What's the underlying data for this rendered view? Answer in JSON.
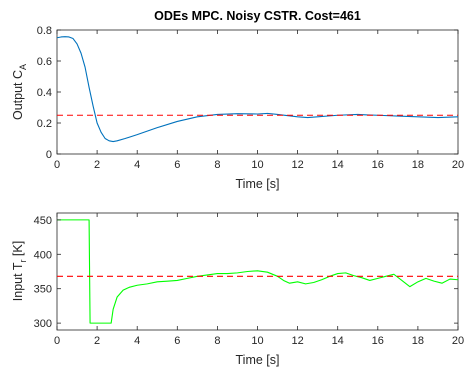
{
  "chart_data": [
    {
      "type": "line",
      "title": "ODEs MPC. Noisy CSTR. Cost=461",
      "xlabel": "Time [s]",
      "ylabel_main": "Output C",
      "ylabel_sub": "A",
      "xlim": [
        0,
        20
      ],
      "ylim": [
        0,
        0.8
      ],
      "xticks": [
        "0",
        "2",
        "4",
        "6",
        "8",
        "10",
        "12",
        "14",
        "16",
        "18",
        "20"
      ],
      "yticks": [
        "0",
        "0.2",
        "0.4",
        "0.6",
        "0.8"
      ],
      "grid": false,
      "series": [
        {
          "color": "#0072BD",
          "x": [
            0,
            0.2,
            0.4,
            0.6,
            0.8,
            1.0,
            1.2,
            1.4,
            1.6,
            1.8,
            2.0,
            2.2,
            2.4,
            2.6,
            2.8,
            3.0,
            3.4,
            4.0,
            5.0,
            6.0,
            7.0,
            8.0,
            9.0,
            10.0,
            10.5,
            11.0,
            12.0,
            12.5,
            13.0,
            14.0,
            15.0,
            15.5,
            16.0,
            17.0,
            18.0,
            19.0,
            20.0
          ],
          "y": [
            0.75,
            0.755,
            0.757,
            0.755,
            0.745,
            0.71,
            0.65,
            0.56,
            0.43,
            0.31,
            0.2,
            0.14,
            0.1,
            0.085,
            0.08,
            0.085,
            0.1,
            0.125,
            0.17,
            0.21,
            0.24,
            0.255,
            0.26,
            0.258,
            0.262,
            0.255,
            0.24,
            0.235,
            0.24,
            0.25,
            0.255,
            0.252,
            0.25,
            0.245,
            0.24,
            0.235,
            0.24
          ]
        },
        {
          "color": "#FF0000",
          "dashed": true,
          "x": [
            0,
            20
          ],
          "y": [
            0.25,
            0.25
          ]
        }
      ]
    },
    {
      "type": "line",
      "title": "",
      "xlabel": "Time [s]",
      "ylabel_main": "Input T",
      "ylabel_sub": "r",
      "ylabel_suffix": " [K]",
      "xlim": [
        0,
        20
      ],
      "ylim": [
        290,
        460
      ],
      "xticks": [
        "0",
        "2",
        "4",
        "6",
        "8",
        "10",
        "12",
        "14",
        "16",
        "18",
        "20"
      ],
      "yticks": [
        "300",
        "350",
        "400",
        "450"
      ],
      "grid": false,
      "series": [
        {
          "color": "#00FF00",
          "x": [
            0,
            1.6,
            1.65,
            2.7,
            2.8,
            3.0,
            3.3,
            3.6,
            4.0,
            4.5,
            5.0,
            5.5,
            6.0,
            6.5,
            7.0,
            7.5,
            8.0,
            8.5,
            9.0,
            9.5,
            10.0,
            10.5,
            11.0,
            11.3,
            11.6,
            12.0,
            12.4,
            12.8,
            13.2,
            13.6,
            14.0,
            14.4,
            14.8,
            15.2,
            15.6,
            16.0,
            16.4,
            16.8,
            17.2,
            17.6,
            18.0,
            18.4,
            18.8,
            19.2,
            19.6,
            20.0
          ],
          "y": [
            450,
            450,
            300,
            300,
            320,
            338,
            348,
            352,
            355,
            357,
            360,
            361,
            362,
            365,
            368,
            370,
            372,
            372,
            373,
            375,
            376,
            374,
            368,
            362,
            358,
            360,
            357,
            359,
            363,
            368,
            372,
            373,
            369,
            366,
            362,
            365,
            368,
            371,
            362,
            353,
            360,
            365,
            361,
            358,
            364,
            363
          ]
        },
        {
          "color": "#FF0000",
          "dashed": true,
          "x": [
            0,
            20
          ],
          "y": [
            368,
            368
          ]
        }
      ]
    }
  ]
}
